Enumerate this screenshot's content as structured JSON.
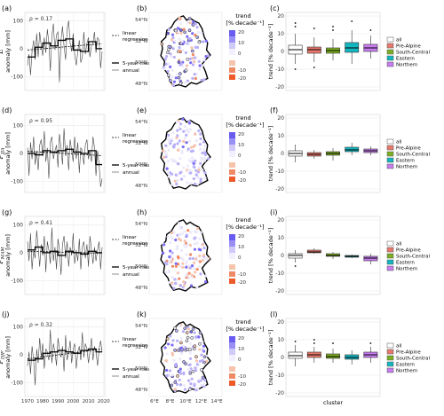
{
  "figure": {
    "col_labels": [
      "(a)",
      "(b)",
      "(c)",
      "(d)",
      "(e)",
      "(f)",
      "(g)",
      "(h)",
      "(i)",
      "(j)",
      "(k)",
      "(l)"
    ]
  },
  "rows": [
    {
      "var_main": "E",
      "var_sub": "",
      "ylabel": "anomaly [mm]",
      "rho": "ρ = 0.17",
      "ts_yticks": [
        -100,
        0,
        100
      ],
      "ts_ylim": [
        -150,
        130
      ],
      "annual": [
        -60,
        -20,
        -95,
        -10,
        30,
        -40,
        55,
        -30,
        60,
        10,
        -25,
        40,
        -15,
        70,
        20,
        -80,
        45,
        90,
        -5,
        50,
        60,
        -120,
        30,
        80,
        10,
        -40,
        70,
        100,
        20,
        -10,
        55,
        -20,
        -60,
        -10,
        30,
        -50,
        -30,
        60,
        -20,
        20,
        40,
        -30,
        10,
        20,
        60,
        -15,
        40,
        30,
        -70,
        -10
      ],
      "mean5": [
        -30,
        -30,
        -30,
        -30,
        -30,
        5,
        5,
        5,
        5,
        5,
        20,
        20,
        20,
        20,
        20,
        10,
        10,
        10,
        10,
        10,
        30,
        30,
        30,
        30,
        30,
        35,
        35,
        35,
        35,
        35,
        -5,
        -5,
        -5,
        -5,
        -5,
        -10,
        -10,
        -10,
        -10,
        -10,
        25,
        25,
        25,
        25,
        25,
        0,
        0,
        0,
        0,
        0
      ],
      "regression": [
        -5,
        18
      ],
      "box": [
        {
          "name": "all",
          "q1": -1.5,
          "med": 1,
          "q3": 3.5,
          "lo": -7,
          "hi": 10,
          "out": [
            14,
            16,
            -10
          ]
        },
        {
          "name": "Pre-Alpine",
          "q1": -1,
          "med": 1,
          "q3": 2.5,
          "lo": -6,
          "hi": 8,
          "out": [
            13,
            -9
          ]
        },
        {
          "name": "South-Central",
          "q1": -1,
          "med": 0.5,
          "q3": 2,
          "lo": -5,
          "hi": 7,
          "out": [
            12,
            14
          ]
        },
        {
          "name": "Eastern",
          "q1": -0.5,
          "med": 2,
          "q3": 5,
          "lo": -7,
          "hi": 12,
          "out": [
            17
          ]
        },
        {
          "name": "Northern",
          "q1": 0,
          "med": 2,
          "q3": 4,
          "lo": -4,
          "hi": 9,
          "out": [
            12
          ]
        }
      ]
    },
    {
      "var_main": "P",
      "var_sub": "JJA",
      "ylabel": "anomaly [mm]",
      "rho": "ρ = 0.95",
      "ts_yticks": [
        -100,
        0,
        100
      ],
      "ts_ylim": [
        -140,
        140
      ],
      "annual": [
        20,
        -80,
        40,
        -20,
        60,
        -40,
        10,
        -60,
        30,
        50,
        -10,
        80,
        -30,
        20,
        -90,
        40,
        60,
        -20,
        10,
        30,
        -50,
        70,
        20,
        -40,
        90,
        -10,
        30,
        -60,
        50,
        10,
        -30,
        60,
        -20,
        40,
        -70,
        20,
        10,
        -40,
        30,
        50,
        -20,
        10,
        -30,
        60,
        20,
        -80,
        10,
        -40,
        -120,
        -90
      ],
      "mean5": [
        0,
        0,
        0,
        0,
        0,
        -5,
        -5,
        -5,
        -5,
        -5,
        10,
        10,
        10,
        10,
        10,
        5,
        5,
        5,
        5,
        5,
        10,
        10,
        10,
        10,
        10,
        15,
        15,
        15,
        15,
        15,
        5,
        5,
        5,
        5,
        5,
        0,
        0,
        0,
        0,
        0,
        10,
        10,
        10,
        10,
        10,
        -40,
        -40,
        -40,
        -40,
        -40
      ],
      "regression": [
        8,
        -8
      ],
      "box": [
        {
          "name": "all",
          "q1": -1.5,
          "med": 0,
          "q3": 1.5,
          "lo": -5,
          "hi": 5,
          "out": []
        },
        {
          "name": "Pre-Alpine",
          "q1": -1.5,
          "med": -0.5,
          "q3": 0.5,
          "lo": -3,
          "hi": 2,
          "out": []
        },
        {
          "name": "South-Central",
          "q1": -1,
          "med": 0,
          "q3": 1,
          "lo": -4,
          "hi": 3,
          "out": []
        },
        {
          "name": "Eastern",
          "q1": 1,
          "med": 2,
          "q3": 3.5,
          "lo": -1,
          "hi": 6,
          "out": []
        },
        {
          "name": "Northern",
          "q1": 0.5,
          "med": 1.5,
          "q3": 2.5,
          "lo": -1,
          "hi": 4,
          "out": []
        }
      ]
    },
    {
      "var_main": "P",
      "var_sub": "MAM",
      "ylabel": "anomaly [mm]",
      "rho": "ρ = 0.41",
      "ts_yticks": [
        -100,
        0,
        100
      ],
      "ts_ylim": [
        -150,
        130
      ],
      "annual": [
        40,
        -30,
        70,
        -60,
        10,
        -20,
        80,
        20,
        -50,
        30,
        -10,
        60,
        -70,
        40,
        10,
        -40,
        90,
        -30,
        20,
        -60,
        50,
        10,
        -80,
        30,
        60,
        -20,
        40,
        -50,
        20,
        -10,
        70,
        -40,
        10,
        -30,
        50,
        -60,
        20,
        40,
        -20,
        30,
        -50,
        60,
        10,
        -40,
        20,
        -30,
        10,
        40,
        -60,
        20
      ],
      "mean5": [
        10,
        10,
        10,
        10,
        10,
        20,
        20,
        20,
        20,
        20,
        0,
        0,
        0,
        0,
        0,
        5,
        5,
        5,
        5,
        5,
        -10,
        -10,
        -10,
        -10,
        -10,
        5,
        5,
        5,
        5,
        5,
        0,
        0,
        0,
        0,
        0,
        -5,
        -5,
        -5,
        -5,
        -5,
        5,
        5,
        5,
        5,
        5,
        0,
        0,
        0,
        0,
        0
      ],
      "regression": [
        5,
        -2
      ],
      "box": [
        {
          "name": "all",
          "q1": -1.5,
          "med": 0,
          "q3": 1,
          "lo": -4,
          "hi": 3,
          "out": [
            -6
          ]
        },
        {
          "name": "Pre-Alpine",
          "q1": 1.5,
          "med": 2,
          "q3": 3,
          "lo": 1,
          "hi": 4,
          "out": []
        },
        {
          "name": "South-Central",
          "q1": -0.5,
          "med": 0,
          "q3": 1,
          "lo": -2,
          "hi": 2,
          "out": []
        },
        {
          "name": "Eastern",
          "q1": -1,
          "med": -0.5,
          "q3": 0,
          "lo": -1.5,
          "hi": 0.5,
          "out": []
        },
        {
          "name": "Northern",
          "q1": -3,
          "med": -1.5,
          "q3": -0.5,
          "lo": -5,
          "hi": 1,
          "out": []
        }
      ]
    },
    {
      "var_main": "P",
      "var_sub": "DJF",
      "ylabel": "anomaly [mm]",
      "rho": "ρ = 0.32",
      "ts_yticks": [
        -100,
        0,
        100
      ],
      "ts_ylim": [
        -150,
        130
      ],
      "annual": [
        -40,
        10,
        -70,
        30,
        -20,
        -110,
        20,
        -30,
        60,
        -10,
        40,
        -50,
        20,
        10,
        -20,
        90,
        -30,
        40,
        10,
        -40,
        60,
        20,
        -10,
        30,
        -60,
        70,
        -20,
        10,
        50,
        -30,
        20,
        40,
        -50,
        10,
        30,
        -20,
        80,
        -10,
        40,
        20,
        -30,
        10,
        60,
        -20,
        30,
        10,
        -40,
        20,
        50,
        10
      ],
      "mean5": [
        -20,
        -20,
        -20,
        -20,
        -20,
        -15,
        -15,
        -15,
        -15,
        -15,
        5,
        5,
        5,
        5,
        5,
        10,
        10,
        10,
        10,
        10,
        15,
        15,
        15,
        15,
        15,
        10,
        10,
        10,
        10,
        10,
        5,
        5,
        5,
        5,
        5,
        15,
        15,
        15,
        15,
        15,
        20,
        20,
        20,
        20,
        20,
        10,
        10,
        10,
        10,
        10
      ],
      "regression": [
        -15,
        20
      ],
      "box": [
        {
          "name": "all",
          "q1": -0.5,
          "med": 1,
          "q3": 3,
          "lo": -5,
          "hi": 7,
          "out": [
            9
          ]
        },
        {
          "name": "Pre-Alpine",
          "q1": 0,
          "med": 1.5,
          "q3": 3,
          "lo": -3,
          "hi": 6,
          "out": [
            8,
            10
          ]
        },
        {
          "name": "South-Central",
          "q1": -0.5,
          "med": 0.5,
          "q3": 2,
          "lo": -3,
          "hi": 5,
          "out": [
            8
          ]
        },
        {
          "name": "Eastern",
          "q1": -1,
          "med": 0,
          "q3": 1.5,
          "lo": -4,
          "hi": 4,
          "out": []
        },
        {
          "name": "Northern",
          "q1": 0,
          "med": 1.5,
          "q3": 3,
          "lo": -3,
          "hi": 6,
          "out": [
            8
          ]
        }
      ]
    }
  ],
  "ts_legend": {
    "linear": "linear",
    "regression": "regression",
    "mean5": "5-year mean",
    "annual": "annual"
  },
  "ts_xticks": [
    "1970",
    "1980",
    "1990",
    "2000",
    "2010",
    "2020"
  ],
  "map": {
    "lat_labels": [
      "54°N",
      "52°N",
      "50°N",
      "48°N"
    ],
    "lon_labels": [
      "6°E",
      "8°E",
      "10°E",
      "12°E",
      "14°E"
    ],
    "legend_title": "trend",
    "legend_unit": "[% decade⁻¹]",
    "legend_ticks": [
      "20",
      "10",
      "0",
      "-10",
      "-20"
    ],
    "colors": [
      "#7b6cf5",
      "#b8b0f8",
      "#ece9fb",
      "#f6c4ad",
      "#f08a64",
      "#ee5a2a"
    ]
  },
  "box": {
    "ylabel": "trend [% decade⁻¹]",
    "yticks": [
      -20,
      -10,
      0,
      10,
      20
    ],
    "ylim": [
      -22,
      22
    ],
    "xlabel": "cluster",
    "legend": [
      {
        "name": "all",
        "color": "#ffffff"
      },
      {
        "name": "Pre-Alpine",
        "color": "#e8786c"
      },
      {
        "name": "South-Central",
        "color": "#7cae22"
      },
      {
        "name": "Eastern",
        "color": "#13b6c0"
      },
      {
        "name": "Northern",
        "color": "#c77cf0"
      }
    ]
  }
}
